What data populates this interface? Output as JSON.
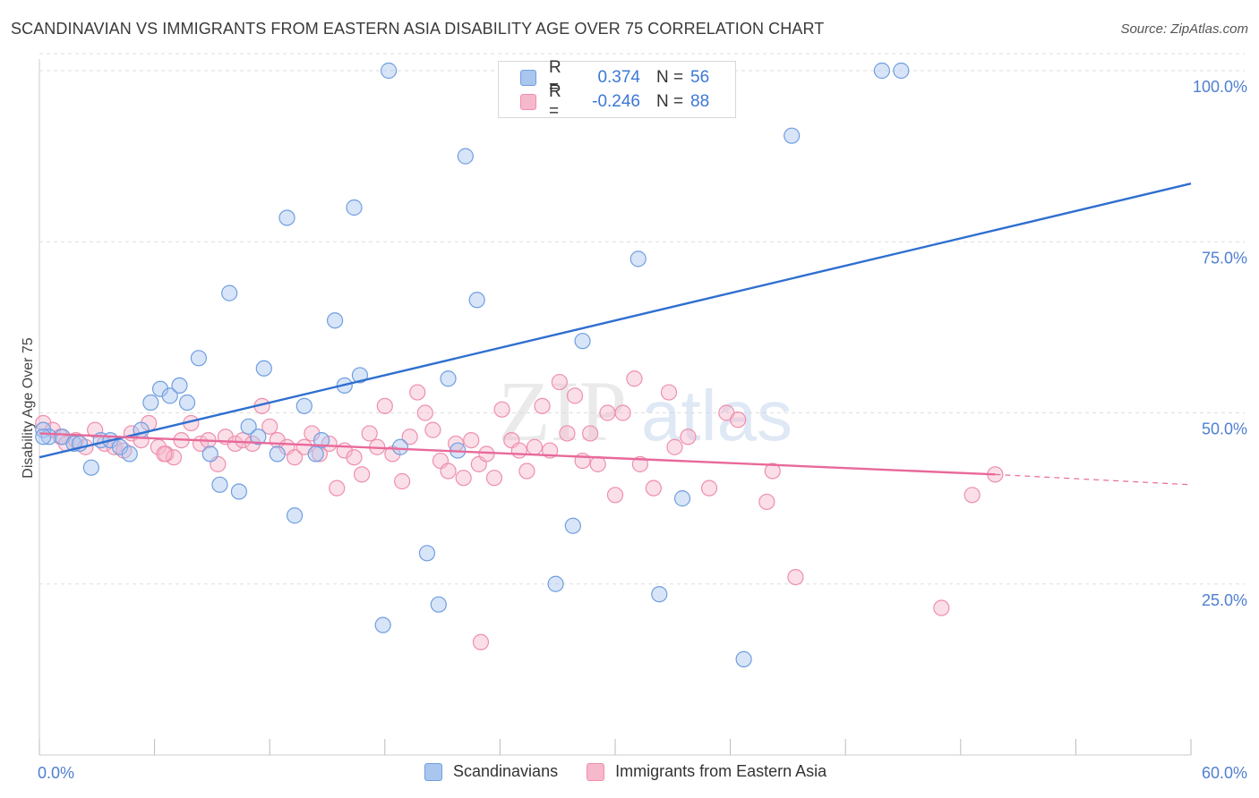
{
  "header": {
    "title": "SCANDINAVIAN VS IMMIGRANTS FROM EASTERN ASIA DISABILITY AGE OVER 75 CORRELATION CHART",
    "source": "Source: ZipAtlas.com"
  },
  "watermark": {
    "zip": "ZIP",
    "atlas": "atlas"
  },
  "legend": {
    "rows": [
      {
        "r_label": "R =",
        "r_value": "0.374",
        "n_label": "N =",
        "n_value": "56"
      },
      {
        "r_label": "R =",
        "r_value": "-0.246",
        "n_label": "N =",
        "n_value": "88"
      }
    ]
  },
  "bottom_legend": {
    "series1": "Scandinavians",
    "series2": "Immigrants from Eastern Asia"
  },
  "colors": {
    "blue_fill": "#a9c6ef",
    "blue_stroke": "#6f9ee0",
    "blue_line": "#2f6fd0",
    "pink_fill": "#f6b8cb",
    "pink_stroke": "#ee8fac",
    "pink_line": "#e8699a",
    "tick_text": "#4f7fd1",
    "grid": "#dddddd"
  },
  "chart_data": {
    "type": "scatter",
    "title": "SCANDINAVIAN VS IMMIGRANTS FROM EASTERN ASIA DISABILITY AGE OVER 75 CORRELATION CHART",
    "xlabel": "",
    "ylabel": "Disability Age Over 75",
    "xlim": [
      0,
      60
    ],
    "ylim": [
      0,
      105
    ],
    "x_tick_labels": [
      "0.0%",
      "60.0%"
    ],
    "y_ticks": [
      {
        "value": 25,
        "label": "25.0%"
      },
      {
        "value": 50,
        "label": "50.0%"
      },
      {
        "value": 75,
        "label": "75.0%"
      },
      {
        "value": 100,
        "label": "100.0%"
      }
    ],
    "grid": true,
    "series": [
      {
        "name": "Scandinavians",
        "r": 0.374,
        "n": 56,
        "trend": {
          "x0": 0,
          "y0": 43.5,
          "x1": 60,
          "y1": 83.5
        },
        "points": [
          [
            0.2,
            47.5
          ],
          [
            0.5,
            46.5
          ],
          [
            1.2,
            46.5
          ],
          [
            1.8,
            45.5
          ],
          [
            2.1,
            45.5
          ],
          [
            2.7,
            42
          ],
          [
            3.2,
            46
          ],
          [
            3.7,
            46
          ],
          [
            4.2,
            45
          ],
          [
            4.7,
            44
          ],
          [
            5.3,
            47.5
          ],
          [
            5.8,
            51.5
          ],
          [
            6.3,
            53.5
          ],
          [
            6.8,
            52.5
          ],
          [
            7.3,
            54
          ],
          [
            7.7,
            51.5
          ],
          [
            8.3,
            58
          ],
          [
            8.9,
            44
          ],
          [
            9.4,
            39.5
          ],
          [
            9.9,
            67.5
          ],
          [
            10.4,
            38.5
          ],
          [
            10.9,
            48
          ],
          [
            11.4,
            46.5
          ],
          [
            11.7,
            56.5
          ],
          [
            12.4,
            44
          ],
          [
            12.9,
            78.5
          ],
          [
            13.3,
            35
          ],
          [
            13.8,
            51
          ],
          [
            14.4,
            44
          ],
          [
            14.7,
            46
          ],
          [
            15.4,
            63.5
          ],
          [
            15.9,
            54
          ],
          [
            16.4,
            80
          ],
          [
            16.7,
            55.5
          ],
          [
            17.9,
            19
          ],
          [
            18.2,
            100
          ],
          [
            18.8,
            45
          ],
          [
            20.2,
            29.5
          ],
          [
            20.8,
            22
          ],
          [
            21.3,
            55
          ],
          [
            21.8,
            44.5
          ],
          [
            22.2,
            87.5
          ],
          [
            22.8,
            66.5
          ],
          [
            26.9,
            25
          ],
          [
            27.3,
            100
          ],
          [
            27.8,
            33.5
          ],
          [
            28.3,
            60.5
          ],
          [
            30.3,
            100
          ],
          [
            31.2,
            72.5
          ],
          [
            32.3,
            23.5
          ],
          [
            33.5,
            37.5
          ],
          [
            36.7,
            14
          ],
          [
            39.2,
            90.5
          ],
          [
            43.9,
            100
          ],
          [
            44.9,
            100
          ],
          [
            0.2,
            46.5
          ]
        ]
      },
      {
        "name": "Immigrants from Eastern Asia",
        "r": -0.246,
        "n": 88,
        "trend": {
          "x0": 0,
          "y0": 47,
          "x1": 49.8,
          "y1": 41,
          "dash_to_x": 60,
          "dash_to_y": 39.5
        },
        "points": [
          [
            0.2,
            48.5
          ],
          [
            0.7,
            47.5
          ],
          [
            1.1,
            46.5
          ],
          [
            1.4,
            45.5
          ],
          [
            1.9,
            46
          ],
          [
            2.4,
            45
          ],
          [
            2.9,
            47.5
          ],
          [
            3.4,
            45.5
          ],
          [
            3.9,
            45
          ],
          [
            4.4,
            44.5
          ],
          [
            4.8,
            47
          ],
          [
            5.3,
            46
          ],
          [
            5.7,
            48.5
          ],
          [
            6.2,
            45
          ],
          [
            6.6,
            44
          ],
          [
            7.0,
            43.5
          ],
          [
            7.4,
            46
          ],
          [
            7.9,
            48.5
          ],
          [
            8.4,
            45.5
          ],
          [
            8.8,
            46
          ],
          [
            9.3,
            42.5
          ],
          [
            9.7,
            46.5
          ],
          [
            10.2,
            45.5
          ],
          [
            10.6,
            46
          ],
          [
            11.1,
            45.5
          ],
          [
            11.6,
            51
          ],
          [
            12.0,
            48
          ],
          [
            12.4,
            46
          ],
          [
            12.9,
            45
          ],
          [
            13.3,
            43.5
          ],
          [
            13.8,
            45
          ],
          [
            14.2,
            47
          ],
          [
            14.6,
            44
          ],
          [
            15.1,
            45.5
          ],
          [
            15.5,
            39
          ],
          [
            15.9,
            44.5
          ],
          [
            16.4,
            43.5
          ],
          [
            16.8,
            41
          ],
          [
            17.2,
            47
          ],
          [
            17.6,
            45
          ],
          [
            18.0,
            51
          ],
          [
            18.4,
            44
          ],
          [
            18.9,
            40
          ],
          [
            19.3,
            46.5
          ],
          [
            19.7,
            53
          ],
          [
            20.1,
            50
          ],
          [
            20.5,
            47.5
          ],
          [
            20.9,
            43
          ],
          [
            21.3,
            41.5
          ],
          [
            21.7,
            45.5
          ],
          [
            22.1,
            40.5
          ],
          [
            22.5,
            46
          ],
          [
            22.9,
            42.5
          ],
          [
            23.3,
            44
          ],
          [
            23.7,
            40.5
          ],
          [
            24.1,
            50.5
          ],
          [
            24.6,
            46
          ],
          [
            25.0,
            44.5
          ],
          [
            25.4,
            41.5
          ],
          [
            25.8,
            45
          ],
          [
            26.2,
            51
          ],
          [
            26.6,
            44.5
          ],
          [
            27.1,
            54.5
          ],
          [
            27.5,
            47
          ],
          [
            27.9,
            52.5
          ],
          [
            28.3,
            43
          ],
          [
            28.7,
            47
          ],
          [
            29.1,
            42.5
          ],
          [
            29.6,
            50
          ],
          [
            30.0,
            38
          ],
          [
            30.4,
            50
          ],
          [
            31.0,
            55
          ],
          [
            31.3,
            42.5
          ],
          [
            32.0,
            39
          ],
          [
            32.8,
            53
          ],
          [
            33.1,
            45
          ],
          [
            33.8,
            46.5
          ],
          [
            34.9,
            39
          ],
          [
            35.8,
            50
          ],
          [
            36.4,
            49
          ],
          [
            37.9,
            37
          ],
          [
            39.4,
            26
          ],
          [
            47.0,
            21.5
          ],
          [
            48.6,
            38
          ],
          [
            49.8,
            41
          ],
          [
            38.2,
            41.5
          ],
          [
            23.0,
            16.5
          ],
          [
            6.5,
            44
          ]
        ]
      }
    ]
  }
}
